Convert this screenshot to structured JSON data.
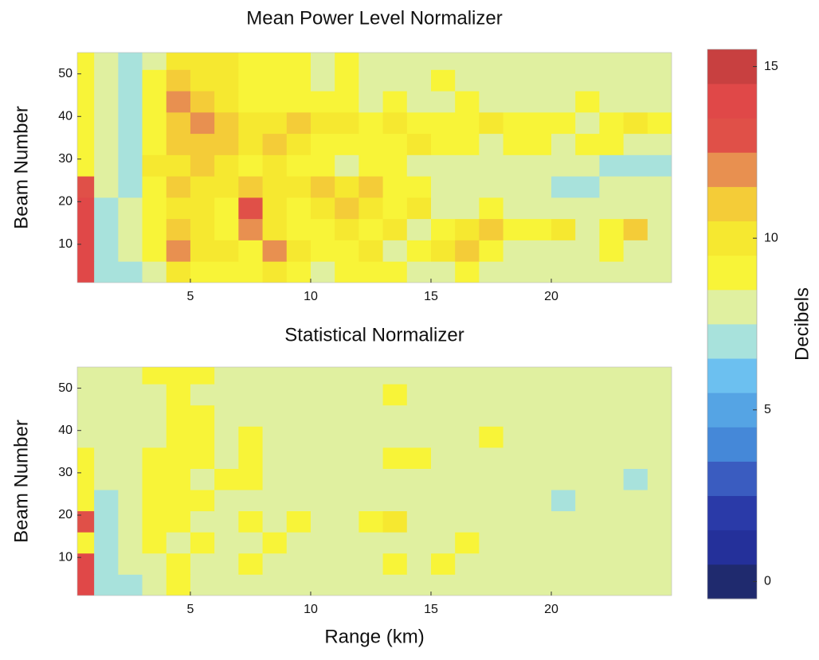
{
  "chart_data": [
    {
      "type": "heatmap",
      "title": "Mean Power Level Normalizer",
      "ylabel": "Beam Number",
      "xbins": [
        0,
        1,
        2,
        3,
        4,
        5,
        6,
        7,
        8,
        9,
        10,
        11,
        12,
        13,
        14,
        15,
        16,
        17,
        18,
        19,
        20,
        21,
        22,
        23,
        24,
        25
      ],
      "ybins": [
        1,
        6,
        11,
        16,
        21,
        26,
        31,
        36,
        41,
        46,
        51,
        56
      ],
      "xlim": [
        0.3,
        25
      ],
      "ylim": [
        1,
        55
      ],
      "xticks": [
        5,
        10,
        15,
        20
      ],
      "yticks": [
        10,
        20,
        30,
        40,
        50
      ],
      "values": [
        [
          14,
          7,
          7,
          8,
          10,
          9,
          9,
          9,
          10,
          9,
          8,
          9,
          9,
          9,
          8,
          8,
          9,
          8,
          8,
          8,
          8,
          8,
          8,
          8,
          8
        ],
        [
          14,
          7,
          8,
          9,
          12,
          10,
          10,
          9,
          12,
          10,
          9,
          9,
          10,
          8,
          9,
          10,
          11,
          9,
          8,
          8,
          8,
          8,
          9,
          8,
          8
        ],
        [
          14,
          7,
          8,
          9,
          11,
          10,
          9,
          12,
          10,
          9,
          9,
          10,
          9,
          10,
          8,
          9,
          10,
          11,
          9,
          9,
          10,
          8,
          9,
          11,
          8
        ],
        [
          14,
          7,
          8,
          9,
          10,
          10,
          9,
          13,
          10,
          9,
          10,
          11,
          10,
          9,
          10,
          8,
          8,
          9,
          8,
          8,
          8,
          8,
          8,
          8,
          8
        ],
        [
          13,
          8,
          7,
          9,
          11,
          10,
          10,
          11,
          10,
          10,
          11,
          10,
          11,
          9,
          9,
          8,
          8,
          8,
          8,
          8,
          7,
          7,
          8,
          8,
          8
        ],
        [
          9,
          8,
          7,
          10,
          10,
          11,
          10,
          9,
          10,
          9,
          9,
          8,
          9,
          9,
          8,
          8,
          8,
          8,
          8,
          8,
          8,
          8,
          7,
          7,
          7
        ],
        [
          9,
          8,
          7,
          9,
          11,
          11,
          11,
          10,
          11,
          10,
          9,
          9,
          9,
          9,
          10,
          9,
          9,
          8,
          9,
          9,
          8,
          9,
          9,
          8,
          8
        ],
        [
          9,
          8,
          7,
          9,
          11,
          12,
          11,
          10,
          10,
          11,
          10,
          10,
          9,
          10,
          9,
          9,
          9,
          10,
          9,
          9,
          9,
          8,
          9,
          10,
          9
        ],
        [
          9,
          8,
          7,
          9,
          12,
          11,
          10,
          9,
          9,
          9,
          9,
          9,
          8,
          9,
          8,
          8,
          9,
          8,
          8,
          8,
          8,
          9,
          8,
          8,
          8
        ],
        [
          9,
          8,
          7,
          9,
          11,
          10,
          10,
          9,
          9,
          9,
          8,
          9,
          8,
          8,
          8,
          9,
          8,
          8,
          8,
          8,
          8,
          8,
          8,
          8,
          8
        ],
        [
          9,
          8,
          7,
          8,
          10,
          10,
          10,
          9,
          9,
          9,
          8,
          9,
          8,
          8,
          8,
          8,
          8,
          8,
          8,
          8,
          8,
          8,
          8,
          8,
          8
        ]
      ]
    },
    {
      "type": "heatmap",
      "title": "Statistical Normalizer",
      "ylabel": "Beam Number",
      "xlabel": "Range (km)",
      "xbins": [
        0,
        1,
        2,
        3,
        4,
        5,
        6,
        7,
        8,
        9,
        10,
        11,
        12,
        13,
        14,
        15,
        16,
        17,
        18,
        19,
        20,
        21,
        22,
        23,
        24,
        25
      ],
      "ybins": [
        1,
        6,
        11,
        16,
        21,
        26,
        31,
        36,
        41,
        46,
        51,
        56
      ],
      "xlim": [
        0.3,
        25
      ],
      "ylim": [
        1,
        55
      ],
      "xticks": [
        5,
        10,
        15,
        20
      ],
      "yticks": [
        10,
        20,
        30,
        40,
        50
      ],
      "values": [
        [
          14,
          7,
          7,
          8,
          9,
          8,
          8,
          8,
          8,
          8,
          8,
          8,
          8,
          8,
          8,
          8,
          8,
          8,
          8,
          8,
          8,
          8,
          8,
          8,
          8
        ],
        [
          14,
          7,
          8,
          8,
          9,
          8,
          8,
          9,
          8,
          8,
          8,
          8,
          8,
          9,
          8,
          9,
          8,
          8,
          8,
          8,
          8,
          8,
          8,
          8,
          8
        ],
        [
          9,
          7,
          8,
          9,
          8,
          9,
          8,
          8,
          9,
          8,
          8,
          8,
          8,
          8,
          8,
          8,
          9,
          8,
          8,
          8,
          8,
          8,
          8,
          8,
          8
        ],
        [
          13,
          7,
          8,
          9,
          9,
          8,
          8,
          9,
          8,
          9,
          8,
          8,
          9,
          10,
          8,
          8,
          8,
          8,
          8,
          8,
          8,
          8,
          8,
          8,
          8
        ],
        [
          9,
          7,
          8,
          9,
          9,
          9,
          8,
          8,
          8,
          8,
          8,
          8,
          8,
          8,
          8,
          8,
          8,
          8,
          8,
          8,
          7,
          8,
          8,
          8,
          8
        ],
        [
          9,
          8,
          8,
          9,
          9,
          8,
          9,
          9,
          8,
          8,
          8,
          8,
          8,
          8,
          8,
          8,
          8,
          8,
          8,
          8,
          8,
          8,
          8,
          7,
          8
        ],
        [
          9,
          8,
          8,
          9,
          9,
          9,
          8,
          9,
          8,
          8,
          8,
          8,
          8,
          9,
          9,
          8,
          8,
          8,
          8,
          8,
          8,
          8,
          8,
          8,
          8
        ],
        [
          8,
          8,
          8,
          8,
          9,
          9,
          8,
          9,
          8,
          8,
          8,
          8,
          8,
          8,
          8,
          8,
          8,
          9,
          8,
          8,
          8,
          8,
          8,
          8,
          8
        ],
        [
          8,
          8,
          8,
          8,
          9,
          9,
          8,
          8,
          8,
          8,
          8,
          8,
          8,
          8,
          8,
          8,
          8,
          8,
          8,
          8,
          8,
          8,
          8,
          8,
          8
        ],
        [
          8,
          8,
          8,
          8,
          9,
          8,
          8,
          8,
          8,
          8,
          8,
          8,
          8,
          9,
          8,
          8,
          8,
          8,
          8,
          8,
          8,
          8,
          8,
          8,
          8
        ],
        [
          8,
          8,
          8,
          9,
          9,
          9,
          8,
          8,
          8,
          8,
          8,
          8,
          8,
          8,
          8,
          8,
          8,
          8,
          8,
          8,
          8,
          8,
          8,
          8,
          8
        ]
      ]
    },
    {
      "type": "colorbar",
      "label": "Decibels",
      "ylim": [
        -0.5,
        15.5
      ],
      "yticks": [
        0,
        5,
        10,
        15
      ],
      "bins": [
        -0.5,
        0.5,
        1.5,
        2.5,
        3.5,
        4.5,
        5.5,
        6.5,
        7.5,
        8.5,
        9.5,
        10.5,
        11.5,
        12.5,
        13.5,
        14.5,
        15.5
      ],
      "colors": [
        "#1f2a6e",
        "#24309a",
        "#2a3aa8",
        "#3a5cc0",
        "#4588d8",
        "#55a4e4",
        "#6cc0f0",
        "#a8e2dc",
        "#e0f0a0",
        "#f8f438",
        "#f6e830",
        "#f4cc38",
        "#e89050",
        "#e05048",
        "#e04848",
        "#c84040"
      ]
    }
  ]
}
